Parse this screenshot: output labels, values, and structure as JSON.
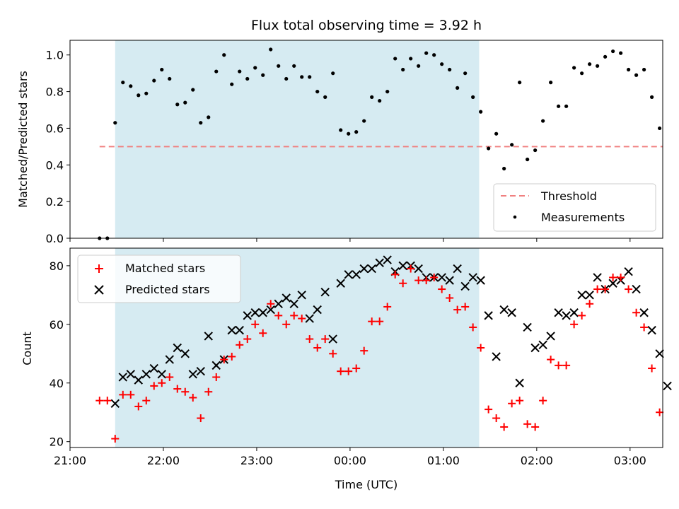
{
  "chart_data": [
    {
      "type": "scatter",
      "title": "Flux total observing time = 3.92 h",
      "ylabel": "Matched/Predicted stars",
      "xlim": [
        "21:00",
        "03:21"
      ],
      "ylim": [
        0,
        1.08
      ],
      "x_ticks": [
        "21:00",
        "22:00",
        "23:00",
        "00:00",
        "01:00",
        "02:00",
        "03:00"
      ],
      "y_ticks": [
        "0.0",
        "0.2",
        "0.4",
        "0.6",
        "0.8",
        "1.0"
      ],
      "grid": false,
      "legend_placement": "bottom-right",
      "highlight_span": {
        "from": "21:29",
        "to": "01:23",
        "color": "#add8e6"
      },
      "threshold": {
        "name": "Threshold",
        "value": 0.5,
        "from": "21:19",
        "to": "03:21",
        "color": "#f08080",
        "style": "dashed"
      },
      "series": [
        {
          "name": "Measurements",
          "color": "#000000",
          "marker": "dot",
          "x": [
            "21:19",
            "21:24",
            "21:29",
            "21:34",
            "21:39",
            "21:44",
            "21:49",
            "21:54",
            "21:59",
            "22:04",
            "22:09",
            "22:14",
            "22:19",
            "22:24",
            "22:29",
            "22:34",
            "22:39",
            "22:44",
            "22:49",
            "22:54",
            "22:59",
            "23:04",
            "23:09",
            "23:14",
            "23:19",
            "23:24",
            "23:29",
            "23:34",
            "23:39",
            "23:44",
            "23:49",
            "23:54",
            "23:59",
            "00:04",
            "00:09",
            "00:14",
            "00:19",
            "00:24",
            "00:29",
            "00:34",
            "00:39",
            "00:44",
            "00:49",
            "00:54",
            "00:59",
            "01:04",
            "01:09",
            "01:14",
            "01:19",
            "01:24",
            "01:29",
            "01:34",
            "01:39",
            "01:44",
            "01:49",
            "01:54",
            "01:59",
            "02:04",
            "02:09",
            "02:14",
            "02:19",
            "02:24",
            "02:29",
            "02:34",
            "02:39",
            "02:44",
            "02:49",
            "02:54",
            "02:59",
            "03:04",
            "03:09",
            "03:14",
            "03:19"
          ],
          "y": [
            0.0,
            0.0,
            0.63,
            0.85,
            0.83,
            0.78,
            0.79,
            0.86,
            0.92,
            0.87,
            0.73,
            0.74,
            0.81,
            0.63,
            0.66,
            0.91,
            1.0,
            0.84,
            0.91,
            0.87,
            0.93,
            0.89,
            1.03,
            0.94,
            0.87,
            0.94,
            0.88,
            0.88,
            0.8,
            0.77,
            0.9,
            0.59,
            0.57,
            0.58,
            0.64,
            0.77,
            0.75,
            0.8,
            0.98,
            0.92,
            0.98,
            0.94,
            1.01,
            1.0,
            0.95,
            0.92,
            0.82,
            0.9,
            0.77,
            0.69,
            0.49,
            0.57,
            0.38,
            0.51,
            0.85,
            0.43,
            0.48,
            0.64,
            0.85,
            0.72,
            0.72,
            0.93,
            0.9,
            0.95,
            0.94,
            0.99,
            1.02,
            1.01,
            0.92,
            0.89,
            0.92,
            0.77,
            0.6
          ]
        }
      ]
    },
    {
      "type": "scatter",
      "xlabel": "Time (UTC)",
      "ylabel": "Count",
      "xlim": [
        "21:00",
        "03:21"
      ],
      "ylim": [
        18,
        86
      ],
      "x_ticks": [
        "21:00",
        "22:00",
        "23:00",
        "00:00",
        "01:00",
        "02:00",
        "03:00"
      ],
      "y_ticks": [
        "20",
        "40",
        "60",
        "80"
      ],
      "grid": false,
      "legend_placement": "top-left",
      "highlight_span": {
        "from": "21:29",
        "to": "01:23",
        "color": "#add8e6"
      },
      "series": [
        {
          "name": "Matched stars",
          "color": "#ff0000",
          "marker": "plus",
          "x": [
            "21:19",
            "21:24",
            "21:29",
            "21:34",
            "21:39",
            "21:44",
            "21:49",
            "21:54",
            "21:59",
            "22:04",
            "22:09",
            "22:14",
            "22:19",
            "22:24",
            "22:29",
            "22:34",
            "22:39",
            "22:44",
            "22:49",
            "22:54",
            "22:59",
            "23:04",
            "23:09",
            "23:14",
            "23:19",
            "23:24",
            "23:29",
            "23:34",
            "23:39",
            "23:44",
            "23:49",
            "23:54",
            "23:59",
            "00:04",
            "00:09",
            "00:14",
            "00:19",
            "00:24",
            "00:29",
            "00:34",
            "00:39",
            "00:44",
            "00:49",
            "00:54",
            "00:59",
            "01:04",
            "01:09",
            "01:14",
            "01:19",
            "01:24",
            "01:29",
            "01:34",
            "01:39",
            "01:44",
            "01:49",
            "01:54",
            "01:59",
            "02:04",
            "02:09",
            "02:14",
            "02:19",
            "02:24",
            "02:29",
            "02:34",
            "02:39",
            "02:44",
            "02:49",
            "02:54",
            "02:59",
            "03:04",
            "03:09",
            "03:14",
            "03:19"
          ],
          "y": [
            34,
            34,
            21,
            36,
            36,
            32,
            34,
            39,
            40,
            42,
            38,
            37,
            35,
            28,
            37,
            42,
            48,
            49,
            53,
            55,
            60,
            57,
            67,
            63,
            60,
            63,
            62,
            55,
            52,
            55,
            50,
            44,
            44,
            45,
            51,
            61,
            61,
            66,
            77,
            74,
            79,
            75,
            75,
            76,
            72,
            69,
            65,
            66,
            59,
            52,
            31,
            28,
            25,
            33,
            34,
            26,
            25,
            34,
            48,
            46,
            46,
            60,
            63,
            67,
            72,
            72,
            76,
            76,
            72,
            64,
            59,
            45,
            30
          ]
        },
        {
          "name": "Predicted stars",
          "color": "#000000",
          "marker": "x",
          "x": [
            "21:29",
            "21:34",
            "21:39",
            "21:44",
            "21:49",
            "21:54",
            "21:59",
            "22:04",
            "22:09",
            "22:14",
            "22:19",
            "22:24",
            "22:29",
            "22:34",
            "22:39",
            "22:44",
            "22:49",
            "22:54",
            "22:59",
            "23:04",
            "23:09",
            "23:14",
            "23:19",
            "23:24",
            "23:29",
            "23:34",
            "23:39",
            "23:44",
            "23:49",
            "23:54",
            "23:59",
            "00:04",
            "00:09",
            "00:14",
            "00:19",
            "00:24",
            "00:29",
            "00:34",
            "00:39",
            "00:44",
            "00:49",
            "00:54",
            "00:59",
            "01:04",
            "01:09",
            "01:14",
            "01:19",
            "01:24",
            "01:29",
            "01:34",
            "01:39",
            "01:44",
            "01:49",
            "01:54",
            "01:59",
            "02:04",
            "02:09",
            "02:14",
            "02:19",
            "02:24",
            "02:29",
            "02:34",
            "02:39",
            "02:44",
            "02:49",
            "02:54",
            "02:59",
            "03:04",
            "03:09",
            "03:14",
            "03:19",
            "03:24"
          ],
          "y": [
            33,
            42,
            43,
            41,
            43,
            45,
            43,
            48,
            52,
            50,
            43,
            44,
            56,
            46,
            48,
            58,
            58,
            63,
            64,
            64,
            65,
            67,
            69,
            67,
            70,
            62,
            65,
            71,
            55,
            74,
            77,
            77,
            79,
            79,
            81,
            82,
            78,
            80,
            80,
            79,
            76,
            76,
            76,
            75,
            79,
            73,
            76,
            75,
            63,
            49,
            65,
            64,
            40,
            59,
            52,
            53,
            56,
            64,
            63,
            64,
            70,
            70,
            76,
            72,
            74,
            75,
            78,
            72,
            64,
            58,
            50,
            39
          ]
        }
      ]
    }
  ]
}
